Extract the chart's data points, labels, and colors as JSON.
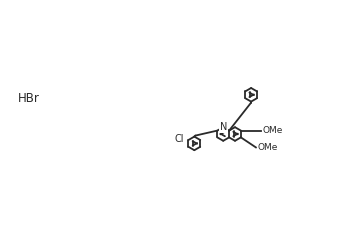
{
  "background_color": "#ffffff",
  "line_color": "#2a2a2a",
  "text_color": "#2a2a2a",
  "hbr_label": "HBr",
  "cl_label": "Cl",
  "ome1_label": "OMe",
  "ome2_label": "OMe",
  "n_label": "N",
  "lw": 1.3,
  "r": 0.068
}
